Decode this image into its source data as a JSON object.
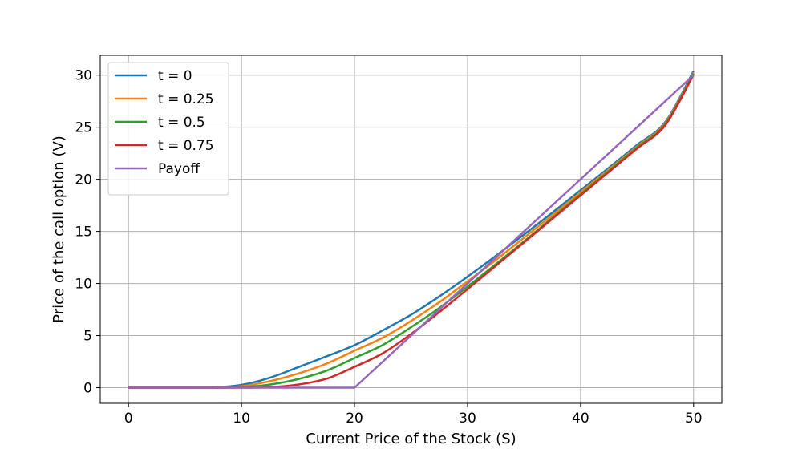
{
  "chart_data": {
    "type": "line",
    "title": "",
    "xlabel": "Current Price of the Stock (S)",
    "ylabel": "Price of the call option (V)",
    "xlim": [
      -2.5,
      52.5
    ],
    "ylim": [
      -1.5,
      31.9
    ],
    "xticks": [
      0,
      10,
      20,
      30,
      40,
      50
    ],
    "yticks": [
      0,
      5,
      10,
      15,
      20,
      25,
      30
    ],
    "grid": true,
    "legend_position": "top-left",
    "x": [
      0,
      2.5,
      5,
      7.5,
      10,
      12.5,
      15,
      17.5,
      20,
      22.5,
      25,
      27.5,
      30,
      32.5,
      35,
      37.5,
      40,
      42.5,
      45,
      47.5,
      50
    ],
    "series": [
      {
        "name": "t = 0",
        "color": "#1f77b4",
        "values": [
          0,
          0,
          0,
          0.02,
          0.27,
          0.95,
          1.96,
          3.0,
          4.08,
          5.5,
          7.0,
          8.75,
          10.65,
          12.65,
          14.7,
          16.8,
          18.95,
          21.1,
          23.3,
          25.5,
          30.4
        ]
      },
      {
        "name": "t = 0.25",
        "color": "#ff7f0e",
        "values": [
          0,
          0,
          0,
          0,
          0.14,
          0.62,
          1.35,
          2.3,
          3.55,
          4.8,
          6.4,
          8.2,
          10.2,
          12.25,
          14.4,
          16.55,
          18.75,
          20.95,
          23.15,
          25.4,
          30.25
        ]
      },
      {
        "name": "t = 0.5",
        "color": "#2ca02c",
        "values": [
          0,
          0,
          0,
          0,
          0.05,
          0.3,
          0.82,
          1.62,
          2.85,
          4.1,
          5.8,
          7.65,
          9.7,
          11.85,
          14.05,
          16.3,
          18.55,
          20.8,
          23.05,
          25.3,
          30.15
        ]
      },
      {
        "name": "t = 0.75",
        "color": "#d62728",
        "values": [
          0,
          0,
          0,
          0,
          0,
          0.05,
          0.3,
          0.85,
          2.0,
          3.3,
          5.15,
          7.25,
          9.45,
          11.7,
          13.95,
          16.2,
          18.45,
          20.7,
          22.95,
          25.2,
          30.05
        ]
      },
      {
        "name": "Payoff",
        "color": "#9467bd",
        "values": [
          0,
          0,
          0,
          0,
          0,
          0,
          0,
          0,
          0,
          2.5,
          5,
          7.5,
          10,
          12.5,
          15,
          17.5,
          20,
          22.5,
          25,
          27.5,
          30
        ]
      }
    ]
  }
}
